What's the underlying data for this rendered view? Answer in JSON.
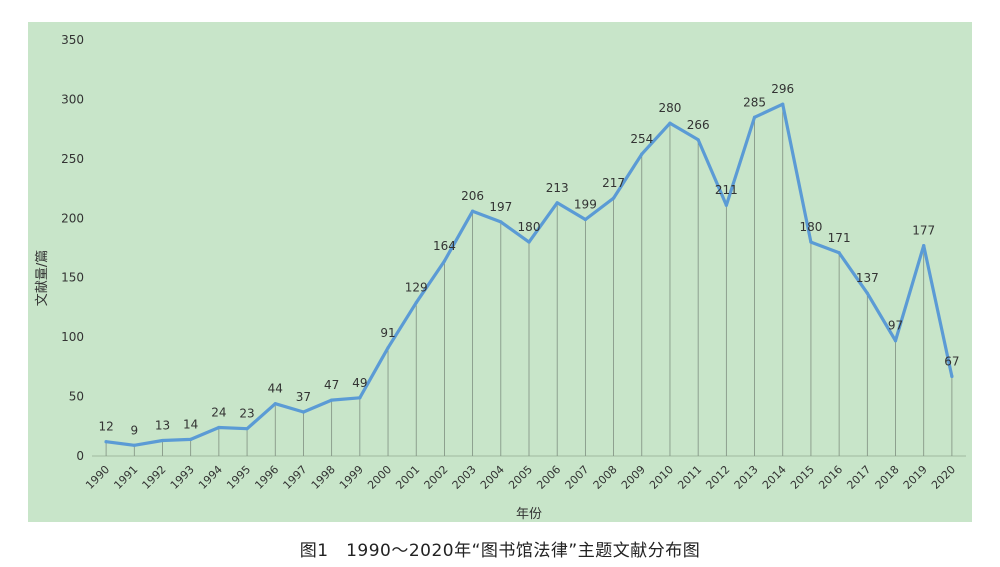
{
  "caption": "图1　1990～2020年“图书馆法律”主题文献分布图",
  "colors": {
    "background": "#c8e5c9",
    "line": "#5b9bd5",
    "droplines": "#7f8f80",
    "text": "#333333"
  },
  "chart_data": {
    "type": "line",
    "title": "",
    "xlabel": "年份",
    "ylabel": "文献量/篇",
    "ylim": [
      0,
      350
    ],
    "yticks": [
      0,
      50,
      100,
      150,
      200,
      250,
      300,
      350
    ],
    "grid": false,
    "legend": "none",
    "categories": [
      "1990",
      "1991",
      "1992",
      "1993",
      "1994",
      "1995",
      "1996",
      "1997",
      "1998",
      "1999",
      "2000",
      "2001",
      "2002",
      "2003",
      "2004",
      "2005",
      "2006",
      "2007",
      "2008",
      "2009",
      "2010",
      "2011",
      "2012",
      "2013",
      "2014",
      "2015",
      "2016",
      "2017",
      "2018",
      "2019",
      "2020"
    ],
    "series": [
      {
        "values": [
          12,
          9,
          13,
          14,
          24,
          23,
          44,
          37,
          47,
          49,
          91,
          129,
          164,
          206,
          197,
          180,
          213,
          199,
          217,
          254,
          280,
          266,
          211,
          285,
          296,
          180,
          171,
          137,
          97,
          177,
          67
        ]
      }
    ]
  }
}
